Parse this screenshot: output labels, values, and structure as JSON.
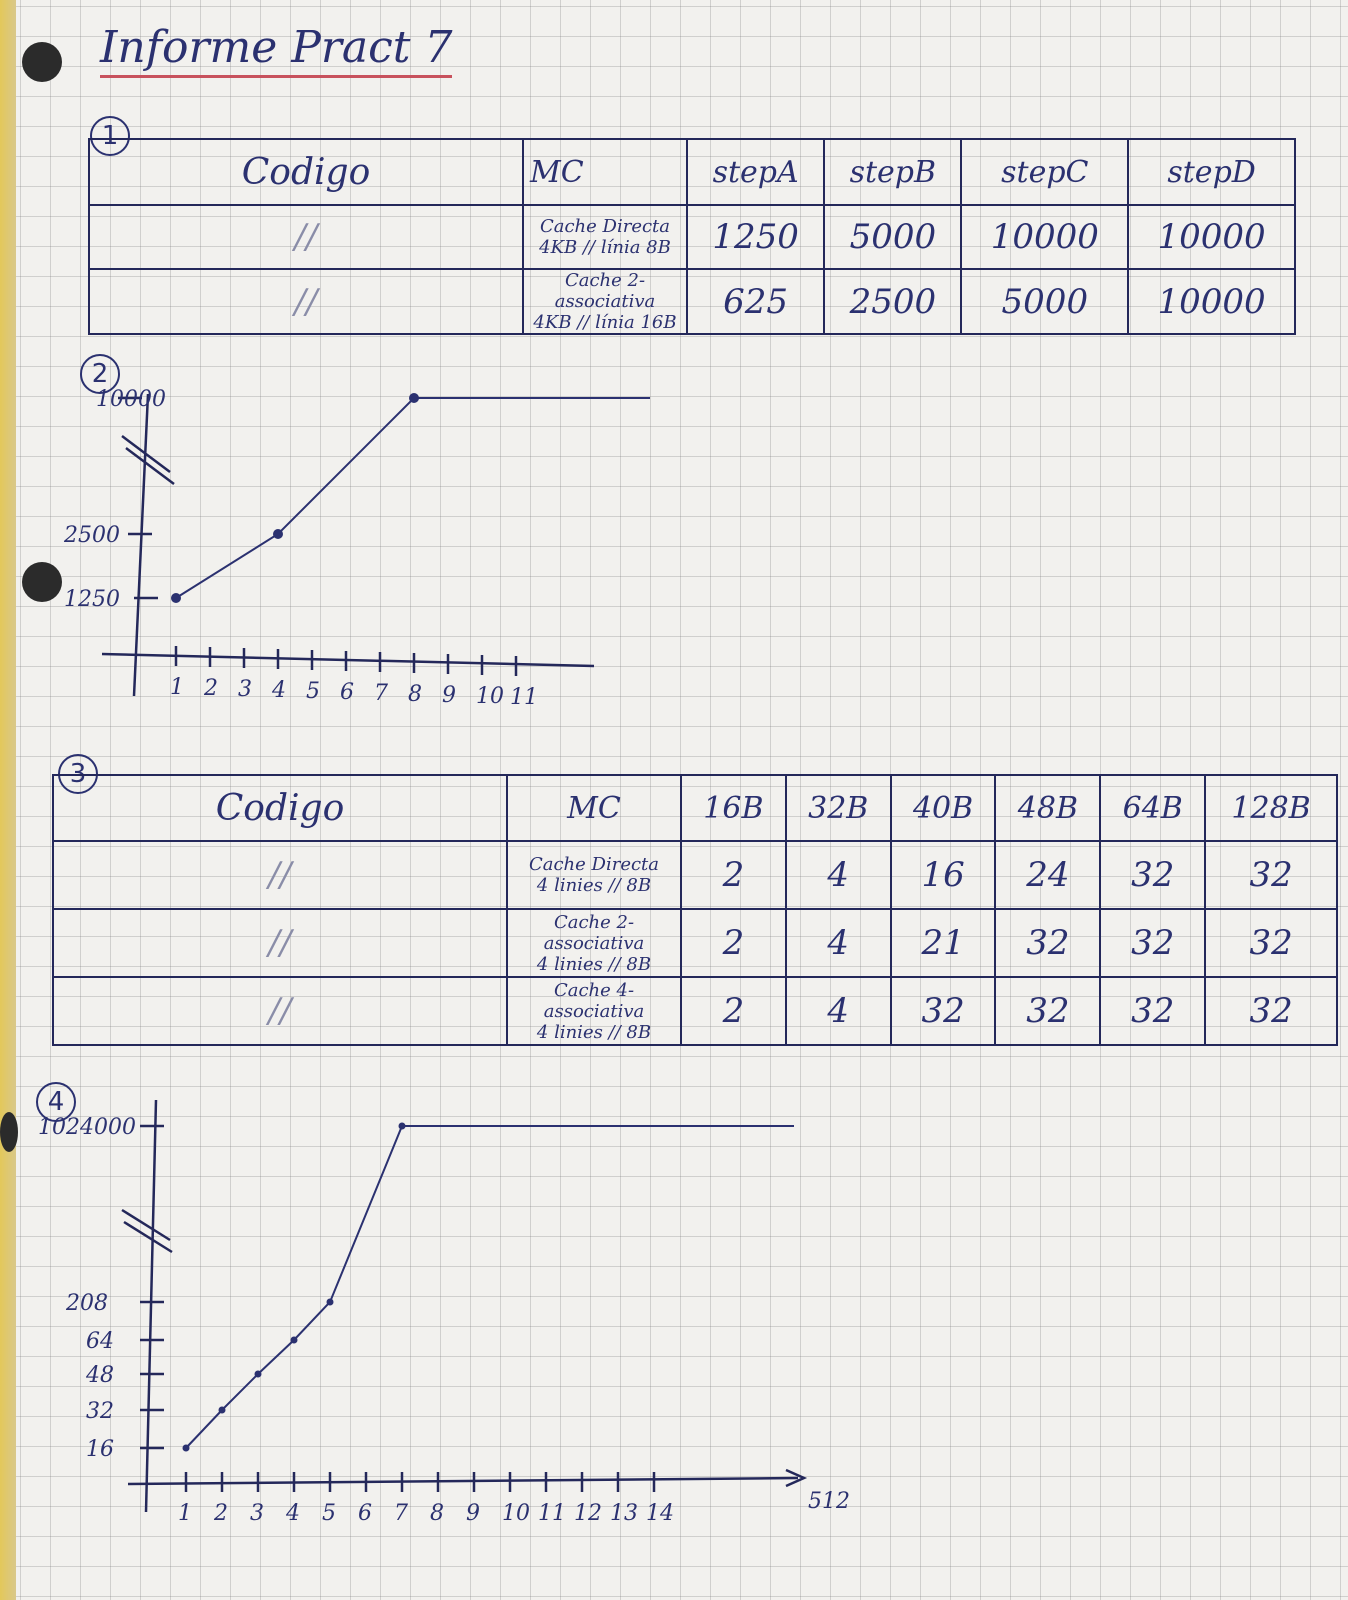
{
  "title": "Informe Pract 7",
  "sections": {
    "s1": "1",
    "s2": "2",
    "s3": "3",
    "s4": "4"
  },
  "table1": {
    "code_header": "Codigo",
    "mc_header": "MC",
    "headers": [
      "stepA",
      "stepB",
      "stepC",
      "stepD"
    ],
    "rows": [
      {
        "code": "//",
        "mc_line1": "Cache Directa",
        "mc_line2": "4KB // línia 8B",
        "values": [
          "1250",
          "5000",
          "10000",
          "10000"
        ]
      },
      {
        "code": "//",
        "mc_line1": "Cache 2-associativa",
        "mc_line2": "4KB // línia 16B",
        "values": [
          "625",
          "2500",
          "5000",
          "10000"
        ]
      }
    ]
  },
  "table2": {
    "code_header": "Codigo",
    "mc_header": "MC",
    "headers": [
      "16B",
      "32B",
      "40B",
      "48B",
      "64B",
      "128B"
    ],
    "rows": [
      {
        "code": "//",
        "mc_line1": "Cache Directa",
        "mc_line2": "4 linies // 8B",
        "values": [
          "2",
          "4",
          "16",
          "24",
          "32",
          "32"
        ]
      },
      {
        "code": "//",
        "mc_line1": "Cache 2-associativa",
        "mc_line2": "4 linies // 8B",
        "values": [
          "2",
          "4",
          "21",
          "32",
          "32",
          "32"
        ]
      },
      {
        "code": "//",
        "mc_line1": "Cache 4-associativa",
        "mc_line2": "4 linies // 8B",
        "values": [
          "2",
          "4",
          "32",
          "32",
          "32",
          "32"
        ]
      }
    ]
  },
  "chart_data": [
    {
      "type": "line",
      "x_ticks": [
        "1",
        "2",
        "3",
        "4",
        "5",
        "6",
        "7",
        "8",
        "9",
        "10",
        "11"
      ],
      "y_ticks": [
        "1250",
        "2500",
        "10000"
      ],
      "points": [
        {
          "x": 1,
          "y": 1250
        },
        {
          "x": 4,
          "y": 2500
        },
        {
          "x": 8,
          "y": 10000
        },
        {
          "x": 14,
          "y": 10000
        }
      ],
      "axis_break": "y",
      "color": "#2b3170"
    },
    {
      "type": "line",
      "x_ticks": [
        "1",
        "2",
        "3",
        "4",
        "5",
        "6",
        "7",
        "8",
        "9",
        "10",
        "11",
        "12",
        "13",
        "14"
      ],
      "x_end_label": "512",
      "y_ticks": [
        "16",
        "32",
        "48",
        "64",
        "208",
        "1024000"
      ],
      "points": [
        {
          "x": 1,
          "y": 16
        },
        {
          "x": 2,
          "y": 32
        },
        {
          "x": 3,
          "y": 48
        },
        {
          "x": 4,
          "y": 64
        },
        {
          "x": 5,
          "y": 208
        },
        {
          "x": 7,
          "y": 1024000
        },
        {
          "x": 18,
          "y": 1024000
        }
      ],
      "axis_break": "y",
      "color": "#2b3170"
    }
  ]
}
